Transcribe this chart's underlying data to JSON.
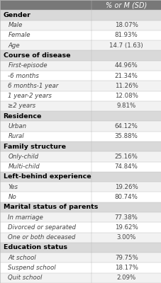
{
  "header": "% or M (SD)",
  "sections": [
    {
      "title": "Gender",
      "rows": [
        [
          "Male",
          "18.07%"
        ],
        [
          "Female",
          "81.93%"
        ],
        [
          "Age",
          "14.7 (1.63)"
        ]
      ]
    },
    {
      "title": "Course of disease",
      "rows": [
        [
          "First-episode",
          "44.96%"
        ],
        [
          "-6 months",
          "21.34%"
        ],
        [
          "6 months-1 year",
          "11.26%"
        ],
        [
          "1 year-2 years",
          "12.08%"
        ],
        [
          "≥2 years",
          "9.81%"
        ]
      ]
    },
    {
      "title": "Residence",
      "rows": [
        [
          "Urban",
          "64.12%"
        ],
        [
          "Rural",
          "35.88%"
        ]
      ]
    },
    {
      "title": "Family structure",
      "rows": [
        [
          "Only-child",
          "25.16%"
        ],
        [
          "Multi-child",
          "74.84%"
        ]
      ]
    },
    {
      "title": "Left-behind experience",
      "rows": [
        [
          "Yes",
          "19.26%"
        ],
        [
          "No",
          "80.74%"
        ]
      ]
    },
    {
      "title": "Marital status of parents",
      "rows": [
        [
          "In marriage",
          "77.38%"
        ],
        [
          "Divorced or separated",
          "19.62%"
        ],
        [
          "One or both deceased",
          "3.00%"
        ]
      ]
    },
    {
      "title": "Education status",
      "rows": [
        [
          "At school",
          "79.75%"
        ],
        [
          "Suspend school",
          "18.17%"
        ],
        [
          "Quit school",
          "2.09%"
        ]
      ]
    }
  ],
  "header_bg": "#787878",
  "header_text_color": "#ffffff",
  "section_bg": "#d9d9d9",
  "section_text_color": "#000000",
  "row_bg_odd": "#f2f2f2",
  "row_bg_even": "#ffffff",
  "border_color": "#bbbbbb",
  "font_size": 6.2,
  "section_font_size": 6.8,
  "header_font_size": 7.0,
  "col_split": 0.57
}
